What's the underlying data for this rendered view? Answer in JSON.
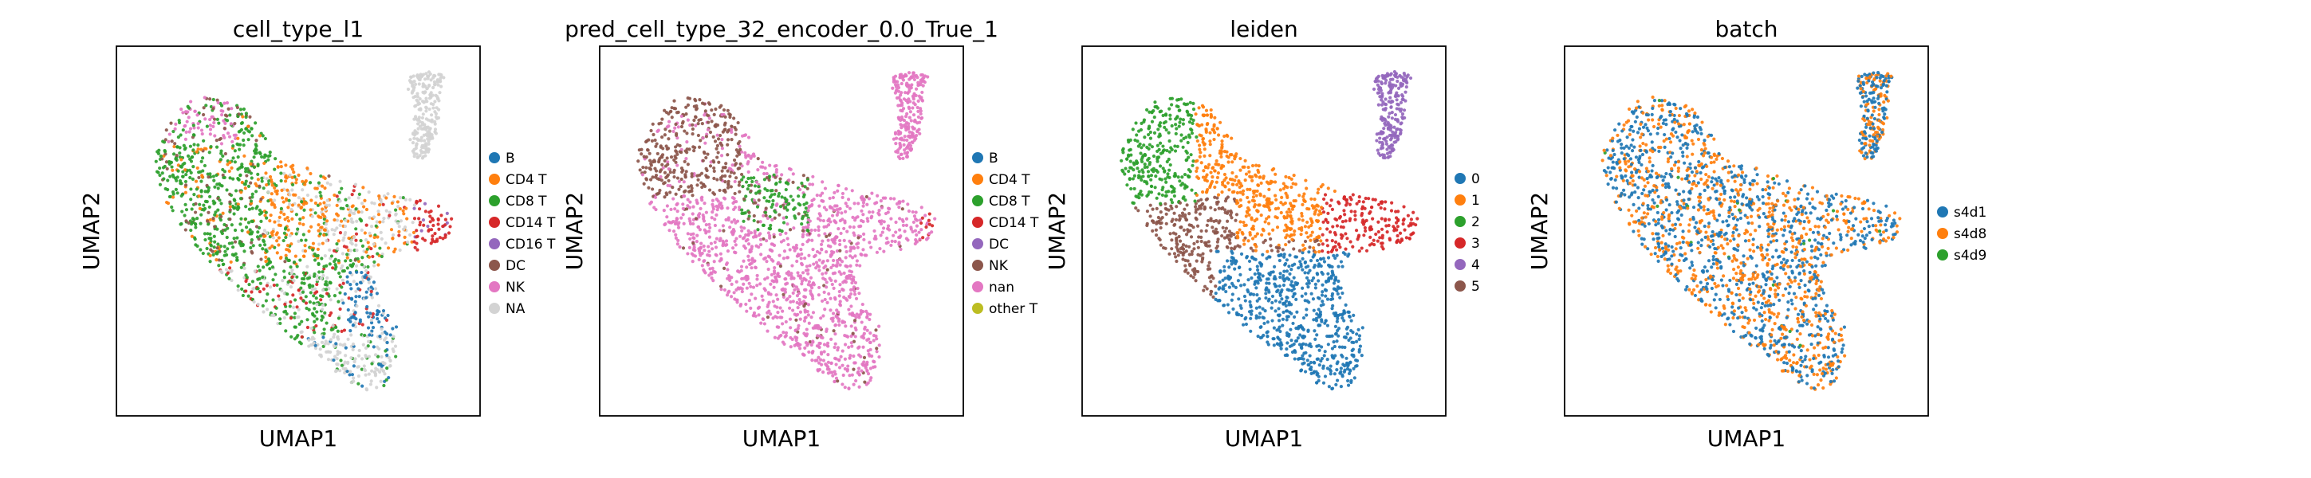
{
  "chart_data": [
    {
      "type": "scatter",
      "title": "cell_type_l1",
      "xlabel": "UMAP1",
      "ylabel": "UMAP2",
      "legend": "right",
      "colors": [
        "#1f77b4",
        "#ff7f0e",
        "#2ca02c",
        "#d62728",
        "#9467bd",
        "#8c564b",
        "#e377c2",
        "#d3d3d3"
      ],
      "categories": [
        "B",
        "CD4 T",
        "CD8 T",
        "CD14 T",
        "CD16 T",
        "DC",
        "NK",
        "NA"
      ]
    },
    {
      "type": "scatter",
      "title": "pred_cell_type_32_encoder_0.0_True_1",
      "xlabel": "UMAP1",
      "ylabel": "UMAP2",
      "legend": "right",
      "colors": [
        "#1f77b4",
        "#ff7f0e",
        "#2ca02c",
        "#d62728",
        "#9467bd",
        "#8c564b",
        "#e377c2",
        "#bcbd22"
      ],
      "categories": [
        "B",
        "CD4 T",
        "CD8 T",
        "CD14 T",
        "DC",
        "NK",
        "nan",
        "other T"
      ]
    },
    {
      "type": "scatter",
      "title": "leiden",
      "xlabel": "UMAP1",
      "ylabel": "UMAP2",
      "legend": "right",
      "colors": [
        "#1f77b4",
        "#ff7f0e",
        "#2ca02c",
        "#d62728",
        "#9467bd",
        "#8c564b"
      ],
      "categories": [
        "0",
        "1",
        "2",
        "3",
        "4",
        "5"
      ]
    },
    {
      "type": "scatter",
      "title": "batch",
      "xlabel": "UMAP1",
      "ylabel": "UMAP2",
      "legend": "right",
      "colors": [
        "#1f77b4",
        "#ff7f0e",
        "#2ca02c"
      ],
      "categories": [
        "s4d1",
        "s4d8",
        "s4d9"
      ]
    }
  ]
}
